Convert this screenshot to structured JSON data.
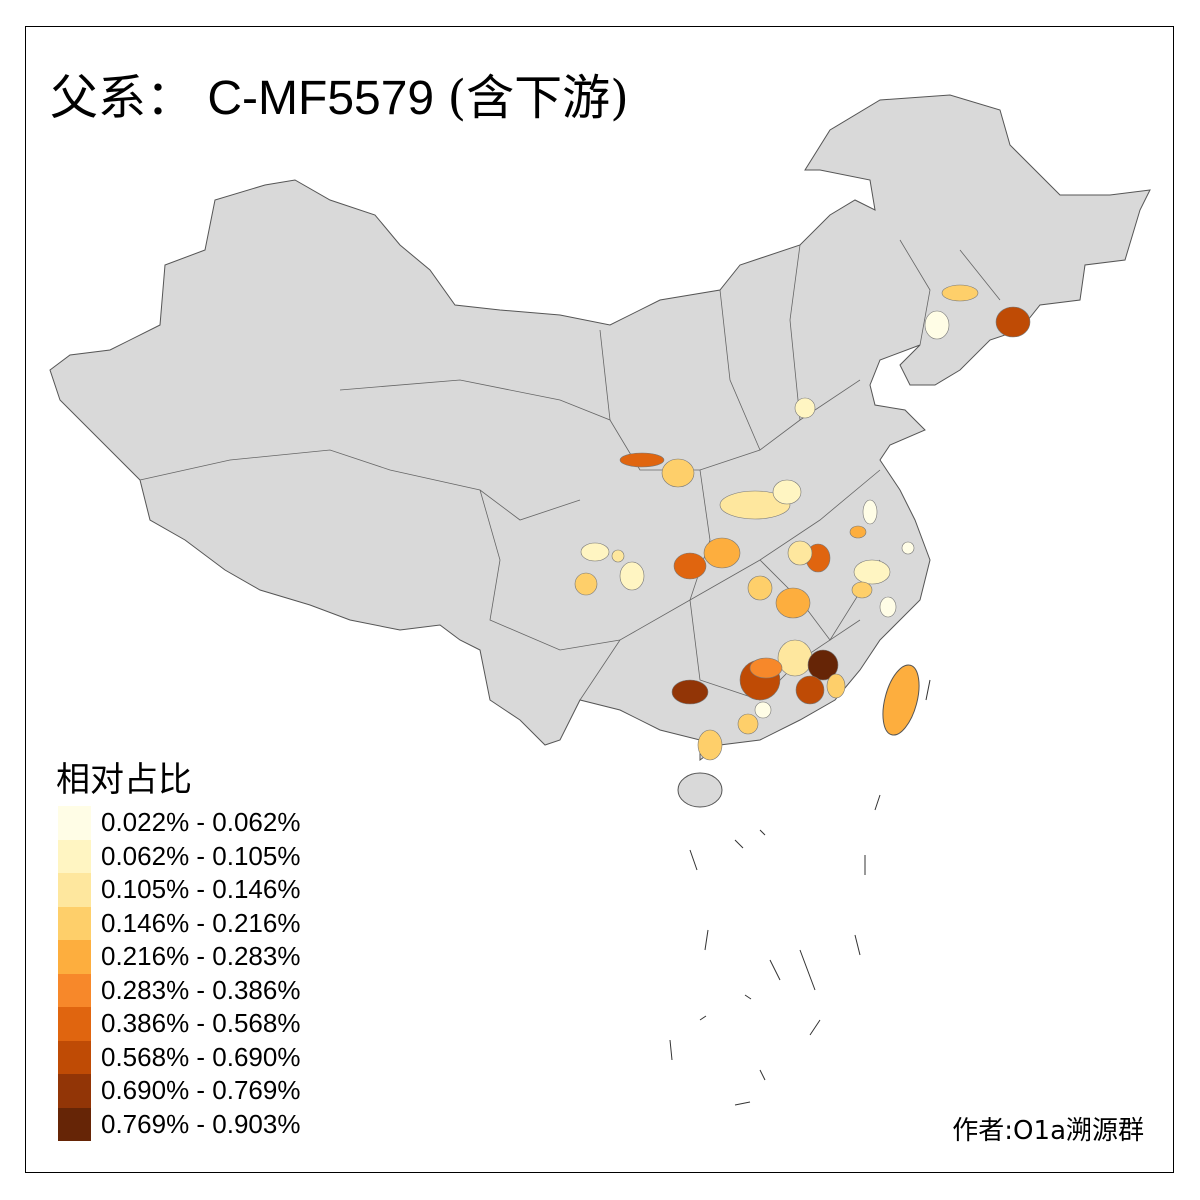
{
  "title": {
    "prefix": "父系：",
    "haplogroup": "C-MF5579",
    "suffix": "(含下游)"
  },
  "legend": {
    "title": "相对占比",
    "bins": [
      {
        "label": "0.022% - 0.062%",
        "color": "#FFFDE6"
      },
      {
        "label": "0.062% - 0.105%",
        "color": "#FFF5C2"
      },
      {
        "label": "0.105% - 0.146%",
        "color": "#FEE79E"
      },
      {
        "label": "0.146% - 0.216%",
        "color": "#FECF6A"
      },
      {
        "label": "0.216% - 0.283%",
        "color": "#FDAE3E"
      },
      {
        "label": "0.283% - 0.386%",
        "color": "#F7882A"
      },
      {
        "label": "0.386% - 0.568%",
        "color": "#E0650F"
      },
      {
        "label": "0.568% - 0.690%",
        "color": "#BF4B05"
      },
      {
        "label": "0.690% - 0.769%",
        "color": "#923506"
      },
      {
        "label": "0.769% - 0.903%",
        "color": "#662506"
      }
    ]
  },
  "map": {
    "base_color": "#D9D9D9",
    "border_color": "#555555"
  },
  "author": "作者:O1a溯源群"
}
